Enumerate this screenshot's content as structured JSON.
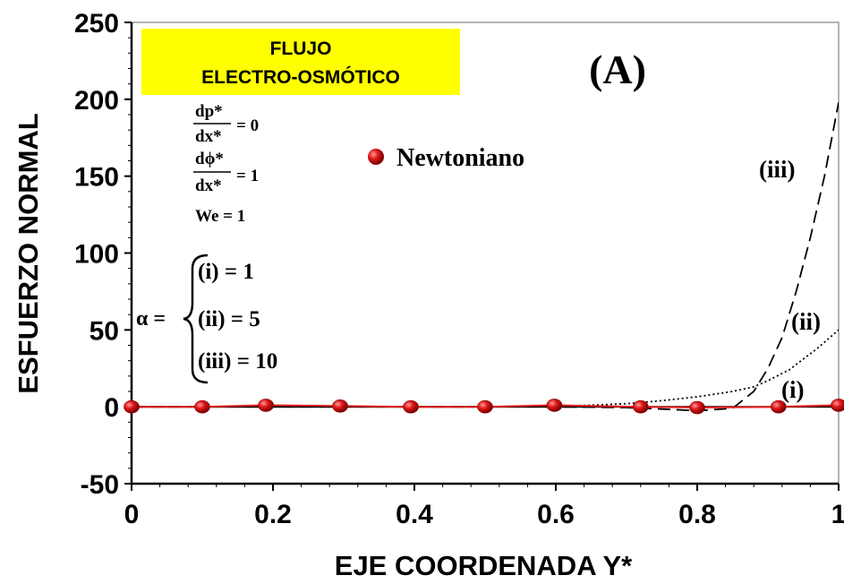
{
  "chart_data": {
    "type": "line",
    "xlabel": "EJE COORDENADA Y*",
    "ylabel": "ESFUERZO NORMAL",
    "xlim": [
      0,
      1
    ],
    "ylim": [
      -50,
      250
    ],
    "x_ticks": [
      "0",
      "0.2",
      "0.4",
      "0.6",
      "0.8",
      "1"
    ],
    "y_ticks": [
      "-50",
      "0",
      "50",
      "100",
      "150",
      "200",
      "250"
    ],
    "grid": false,
    "series": [
      {
        "name": "Newtoniano",
        "style": "red-line-with-sphere-markers",
        "color": "#e31a1c",
        "x": [
          0,
          0.1,
          0.19,
          0.295,
          0.395,
          0.5,
          0.598,
          0.72,
          0.8,
          0.915,
          1.0
        ],
        "y": [
          0,
          0,
          1,
          0.5,
          0,
          0,
          1,
          0,
          -0.5,
          0,
          1
        ]
      },
      {
        "label": "(i)",
        "style": "solid",
        "color": "#000000",
        "x": [
          0,
          0.2,
          0.4,
          0.6,
          0.8,
          0.9,
          1.0
        ],
        "y": [
          0,
          0,
          0,
          0,
          0,
          0,
          0
        ]
      },
      {
        "label": "(ii)",
        "style": "dotted",
        "color": "#000000",
        "x": [
          0,
          0.5,
          0.6,
          0.65,
          0.7,
          0.75,
          0.8,
          0.85,
          0.88,
          0.9,
          0.93,
          0.95,
          0.97,
          1.0
        ],
        "y": [
          0,
          0,
          0.3,
          1,
          2,
          4,
          6.5,
          10,
          13,
          17,
          24,
          31,
          38,
          50
        ]
      },
      {
        "label": "(iii)",
        "style": "dashed",
        "color": "#000000",
        "x": [
          0,
          0.6,
          0.7,
          0.75,
          0.8,
          0.85,
          0.88,
          0.9,
          0.92,
          0.94,
          0.96,
          0.98,
          1.0
        ],
        "y": [
          0,
          0,
          -0.5,
          -1.5,
          -2.5,
          -1,
          10,
          25,
          45,
          75,
          110,
          150,
          198
        ]
      }
    ],
    "annotations": {
      "panel_letter": "(A)",
      "banner_line1": "FLUJO",
      "banner_line2": "ELECTRO-OSMÓTICO",
      "legend_label": "Newtoniano",
      "eq1_num": "dp*",
      "eq1_den": "dx*",
      "eq1_rhs": "= 0",
      "eq2_num": "dϕ*",
      "eq2_den": "dx*",
      "eq2_rhs": "= 1",
      "eq3": "We = 1",
      "alpha": "α =",
      "case_i": "(i) = 1",
      "case_ii": "(ii) = 5",
      "case_iii": "(iii) = 10",
      "label_i": "(i)",
      "label_ii": "(ii)",
      "label_iii": "(iii)"
    },
    "colors": {
      "banner": "#ffff00",
      "newtonian": "#e31a1c"
    }
  }
}
